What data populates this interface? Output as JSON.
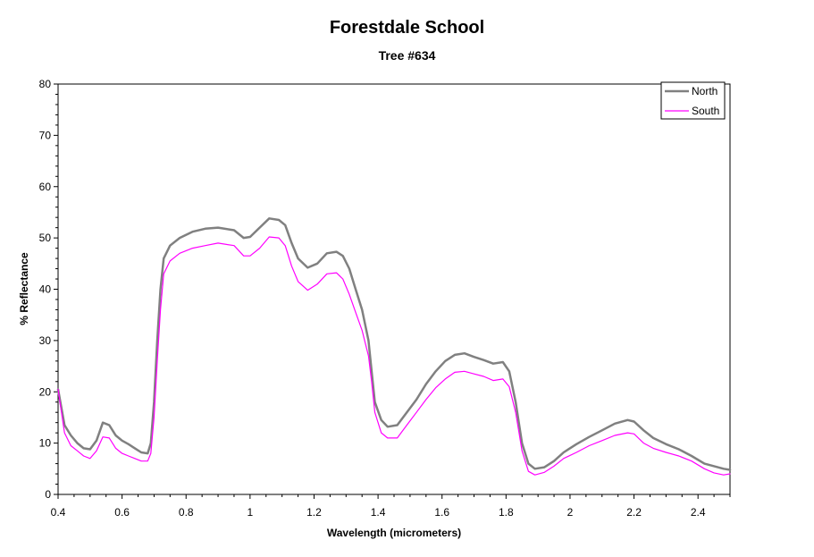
{
  "chart_data": {
    "type": "line",
    "title": "Forestdale School",
    "subtitle": "Tree #634",
    "xlabel": "Wavelength (micrometers)",
    "ylabel": "% Reflectance",
    "xlim": [
      0.4,
      2.5
    ],
    "ylim": [
      0,
      80
    ],
    "x_ticks": [
      "0.4",
      "0.6",
      "0.8",
      "1",
      "1.2",
      "1.4",
      "1.6",
      "1.8",
      "2",
      "2.2",
      "2.4"
    ],
    "y_ticks": [
      "0",
      "10",
      "20",
      "30",
      "40",
      "50",
      "60",
      "70",
      "80"
    ],
    "grid": false,
    "legend_position": "top-right",
    "series": [
      {
        "name": "North",
        "color": "#808080",
        "points": [
          [
            0.4,
            20.5
          ],
          [
            0.42,
            13.5
          ],
          [
            0.44,
            11.5
          ],
          [
            0.46,
            10.0
          ],
          [
            0.48,
            9.0
          ],
          [
            0.5,
            8.8
          ],
          [
            0.52,
            10.5
          ],
          [
            0.54,
            14.0
          ],
          [
            0.56,
            13.5
          ],
          [
            0.58,
            11.5
          ],
          [
            0.6,
            10.5
          ],
          [
            0.62,
            9.8
          ],
          [
            0.64,
            9.0
          ],
          [
            0.66,
            8.2
          ],
          [
            0.68,
            8.0
          ],
          [
            0.69,
            10.0
          ],
          [
            0.7,
            18.0
          ],
          [
            0.71,
            30.0
          ],
          [
            0.72,
            40.0
          ],
          [
            0.73,
            46.0
          ],
          [
            0.75,
            48.5
          ],
          [
            0.78,
            50.0
          ],
          [
            0.82,
            51.2
          ],
          [
            0.86,
            51.8
          ],
          [
            0.9,
            52.0
          ],
          [
            0.95,
            51.5
          ],
          [
            0.98,
            50.0
          ],
          [
            1.0,
            50.2
          ],
          [
            1.03,
            52.0
          ],
          [
            1.06,
            53.8
          ],
          [
            1.09,
            53.5
          ],
          [
            1.11,
            52.5
          ],
          [
            1.13,
            49.0
          ],
          [
            1.15,
            46.0
          ],
          [
            1.18,
            44.2
          ],
          [
            1.21,
            45.0
          ],
          [
            1.24,
            47.0
          ],
          [
            1.27,
            47.3
          ],
          [
            1.29,
            46.5
          ],
          [
            1.31,
            44.0
          ],
          [
            1.33,
            40.0
          ],
          [
            1.35,
            36.0
          ],
          [
            1.37,
            30.0
          ],
          [
            1.38,
            24.0
          ],
          [
            1.39,
            18.0
          ],
          [
            1.41,
            14.5
          ],
          [
            1.43,
            13.2
          ],
          [
            1.46,
            13.5
          ],
          [
            1.49,
            16.0
          ],
          [
            1.52,
            18.5
          ],
          [
            1.55,
            21.5
          ],
          [
            1.58,
            24.0
          ],
          [
            1.61,
            26.0
          ],
          [
            1.64,
            27.2
          ],
          [
            1.67,
            27.5
          ],
          [
            1.7,
            26.8
          ],
          [
            1.73,
            26.2
          ],
          [
            1.76,
            25.5
          ],
          [
            1.79,
            25.8
          ],
          [
            1.81,
            24.0
          ],
          [
            1.83,
            18.0
          ],
          [
            1.85,
            10.0
          ],
          [
            1.87,
            6.0
          ],
          [
            1.89,
            5.0
          ],
          [
            1.92,
            5.3
          ],
          [
            1.95,
            6.5
          ],
          [
            1.98,
            8.2
          ],
          [
            2.02,
            9.8
          ],
          [
            2.06,
            11.2
          ],
          [
            2.1,
            12.5
          ],
          [
            2.14,
            13.8
          ],
          [
            2.18,
            14.5
          ],
          [
            2.2,
            14.2
          ],
          [
            2.23,
            12.5
          ],
          [
            2.26,
            11.0
          ],
          [
            2.3,
            9.8
          ],
          [
            2.34,
            8.8
          ],
          [
            2.38,
            7.5
          ],
          [
            2.42,
            6.0
          ],
          [
            2.45,
            5.5
          ],
          [
            2.48,
            5.0
          ],
          [
            2.5,
            4.8
          ]
        ]
      },
      {
        "name": "South",
        "color": "#ff00ff",
        "points": [
          [
            0.4,
            20.5
          ],
          [
            0.42,
            12.0
          ],
          [
            0.44,
            9.5
          ],
          [
            0.46,
            8.5
          ],
          [
            0.48,
            7.5
          ],
          [
            0.5,
            7.0
          ],
          [
            0.52,
            8.5
          ],
          [
            0.54,
            11.2
          ],
          [
            0.56,
            11.0
          ],
          [
            0.58,
            9.0
          ],
          [
            0.6,
            8.0
          ],
          [
            0.62,
            7.5
          ],
          [
            0.64,
            7.0
          ],
          [
            0.66,
            6.5
          ],
          [
            0.68,
            6.5
          ],
          [
            0.69,
            8.0
          ],
          [
            0.7,
            15.0
          ],
          [
            0.71,
            26.0
          ],
          [
            0.72,
            36.0
          ],
          [
            0.73,
            43.0
          ],
          [
            0.75,
            45.5
          ],
          [
            0.78,
            47.0
          ],
          [
            0.82,
            48.0
          ],
          [
            0.86,
            48.5
          ],
          [
            0.9,
            49.0
          ],
          [
            0.95,
            48.5
          ],
          [
            0.98,
            46.5
          ],
          [
            1.0,
            46.5
          ],
          [
            1.03,
            48.0
          ],
          [
            1.06,
            50.2
          ],
          [
            1.09,
            50.0
          ],
          [
            1.11,
            48.5
          ],
          [
            1.13,
            44.5
          ],
          [
            1.15,
            41.5
          ],
          [
            1.18,
            39.8
          ],
          [
            1.21,
            41.0
          ],
          [
            1.24,
            43.0
          ],
          [
            1.27,
            43.2
          ],
          [
            1.29,
            42.0
          ],
          [
            1.31,
            39.0
          ],
          [
            1.33,
            35.5
          ],
          [
            1.35,
            32.0
          ],
          [
            1.37,
            27.0
          ],
          [
            1.38,
            22.0
          ],
          [
            1.39,
            16.0
          ],
          [
            1.41,
            12.0
          ],
          [
            1.43,
            11.0
          ],
          [
            1.46,
            11.0
          ],
          [
            1.49,
            13.5
          ],
          [
            1.52,
            16.0
          ],
          [
            1.55,
            18.5
          ],
          [
            1.58,
            20.8
          ],
          [
            1.61,
            22.5
          ],
          [
            1.64,
            23.8
          ],
          [
            1.67,
            24.0
          ],
          [
            1.7,
            23.5
          ],
          [
            1.73,
            23.0
          ],
          [
            1.76,
            22.2
          ],
          [
            1.79,
            22.5
          ],
          [
            1.81,
            21.0
          ],
          [
            1.83,
            16.0
          ],
          [
            1.85,
            8.5
          ],
          [
            1.87,
            4.5
          ],
          [
            1.89,
            3.8
          ],
          [
            1.92,
            4.3
          ],
          [
            1.95,
            5.5
          ],
          [
            1.98,
            7.0
          ],
          [
            2.02,
            8.2
          ],
          [
            2.06,
            9.5
          ],
          [
            2.1,
            10.5
          ],
          [
            2.14,
            11.5
          ],
          [
            2.18,
            12.0
          ],
          [
            2.2,
            11.8
          ],
          [
            2.23,
            10.0
          ],
          [
            2.26,
            9.0
          ],
          [
            2.3,
            8.2
          ],
          [
            2.34,
            7.5
          ],
          [
            2.38,
            6.5
          ],
          [
            2.42,
            5.0
          ],
          [
            2.45,
            4.2
          ],
          [
            2.48,
            3.8
          ],
          [
            2.5,
            4.0
          ]
        ]
      }
    ]
  }
}
